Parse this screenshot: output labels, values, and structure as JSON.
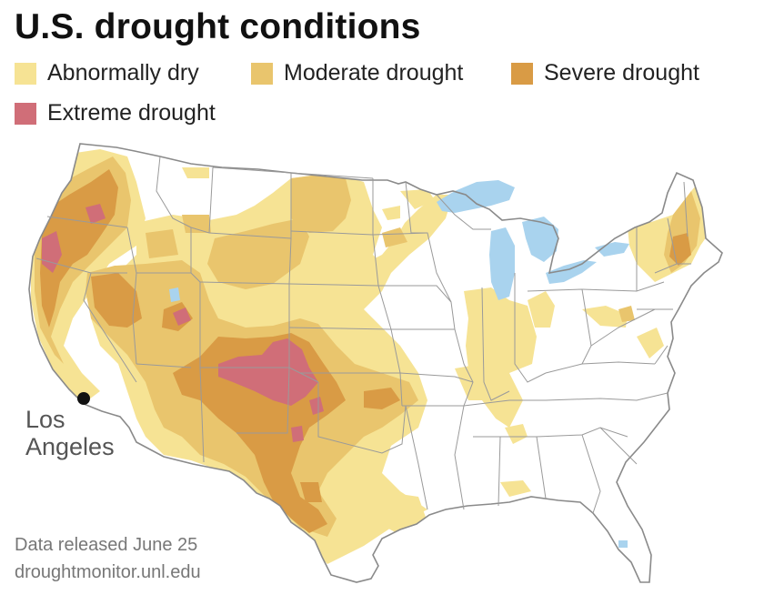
{
  "title": "U.S. drought conditions",
  "legend": [
    {
      "label": "Abnormally dry",
      "color": "#f6e394"
    },
    {
      "label": "Moderate drought",
      "color": "#e9c56d"
    },
    {
      "label": "Severe drought",
      "color": "#d99b45"
    },
    {
      "label": "Extreme drought",
      "color": "#d06e78"
    }
  ],
  "colors": {
    "abnormally_dry": "#f6e394",
    "moderate": "#e9c56d",
    "severe": "#d99b45",
    "extreme": "#d06e78",
    "water": "#a9d3ee",
    "borders": "#9a9a9a"
  },
  "city": {
    "name_line1": "Los",
    "name_line2": "Angeles"
  },
  "source": {
    "line1": "Data released June 25",
    "line2": "droughtmonitor.unl.edu"
  }
}
